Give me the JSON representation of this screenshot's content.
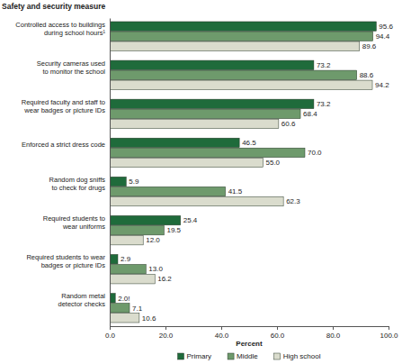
{
  "chart_data": {
    "type": "bar",
    "orientation": "horizontal",
    "title": "Safety and security measure",
    "x_label": "Percent",
    "categories": [
      "Controlled access to buildings\nduring school hours¹",
      "Security cameras used\nto monitor the school",
      "Required faculty and staff to\nwear badges or picture IDs",
      "Enforced a strict dress code",
      "Random dog sniffs\nto check for drugs",
      "Required students to\nwear uniforms",
      "Required students to wear\nbadges or picture IDs",
      "Random metal\ndetector checks"
    ],
    "series": [
      {
        "name": "Primary",
        "color": "#1f6b3b",
        "values": [
          95.6,
          73.2,
          73.2,
          46.5,
          5.9,
          25.4,
          2.9,
          2.0
        ],
        "value_labels": [
          "95.6",
          "73.2",
          "73.2",
          "46.5",
          "5.9",
          "25.4",
          "2.9",
          "2.0!"
        ]
      },
      {
        "name": "Middle",
        "color": "#6e9a6c",
        "values": [
          94.4,
          88.6,
          68.4,
          70.0,
          41.5,
          19.5,
          13.0,
          7.1
        ],
        "value_labels": [
          "94.4",
          "88.6",
          "68.4",
          "70.0",
          "41.5",
          "19.5",
          "13.0",
          "7.1"
        ]
      },
      {
        "name": "High school",
        "color": "#dadccd",
        "values": [
          89.6,
          94.2,
          60.6,
          55.0,
          62.3,
          12.0,
          16.2,
          10.6
        ],
        "value_labels": [
          "89.6",
          "94.2",
          "60.6",
          "55.0",
          "62.3",
          "12.0",
          "16.2",
          "10.6"
        ]
      }
    ],
    "xlim": [
      0,
      100
    ],
    "xticks": [
      {
        "value": 0,
        "label": "0.0"
      },
      {
        "value": 20,
        "label": "20.0"
      },
      {
        "value": 40,
        "label": "40.0"
      },
      {
        "value": 60,
        "label": "60.0"
      },
      {
        "value": 80,
        "label": "80.0"
      },
      {
        "value": 100,
        "label": "100.0"
      }
    ],
    "grid": false,
    "data_labels": true,
    "legend": "bottom"
  }
}
